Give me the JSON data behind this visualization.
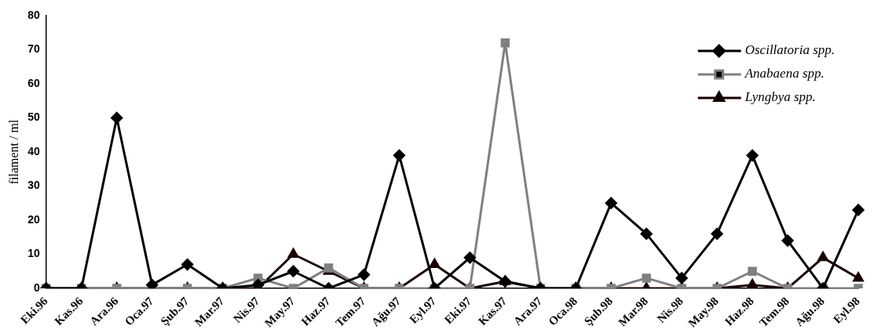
{
  "chart_data": {
    "type": "line",
    "ylabel": "filament / ml",
    "categories": [
      "Eki.96",
      "Kas.96",
      "Ara.96",
      "Oca.97",
      "Şub.97",
      "Mar.97",
      "Nis.97",
      "May.97",
      "Haz.97",
      "Tem.97",
      "Ağu.97",
      "Eyl.97",
      "Eki.97",
      "Kas.97",
      "Ara.97",
      "Oca.98",
      "Şub.98",
      "Mar.98",
      "Nis.98",
      "May.98",
      "Haz.98",
      "Tem.98",
      "Ağu.98",
      "Eyl.98"
    ],
    "series": [
      {
        "name": "Oscillatoria spp.",
        "color": "#000000",
        "marker": "diamond",
        "values": [
          0,
          0,
          50,
          1,
          7,
          0,
          1,
          5,
          0,
          4,
          39,
          0,
          9,
          2,
          0,
          0,
          25,
          16,
          3,
          16,
          39,
          14,
          0,
          23
        ]
      },
      {
        "name": "Anabaena spp.",
        "color": "#808080",
        "marker": "square",
        "values": [
          0,
          0,
          0,
          0,
          0,
          0,
          3,
          0,
          6,
          0,
          0,
          0,
          0,
          72,
          0,
          0,
          0,
          3,
          0,
          0,
          5,
          0,
          0,
          0
        ]
      },
      {
        "name": "Lyngbya spp.",
        "color": "#1a0000",
        "marker": "triangle",
        "values": [
          0,
          0,
          0,
          0,
          0,
          0,
          0,
          10,
          5,
          0,
          0,
          7,
          0,
          2,
          0,
          0,
          0,
          0,
          0,
          0,
          1,
          0,
          9,
          3
        ]
      }
    ],
    "ylim": [
      0,
      80
    ],
    "yticks": [
      0,
      10,
      20,
      30,
      40,
      50,
      60,
      70,
      80
    ],
    "grid": false,
    "legend": "top right"
  }
}
